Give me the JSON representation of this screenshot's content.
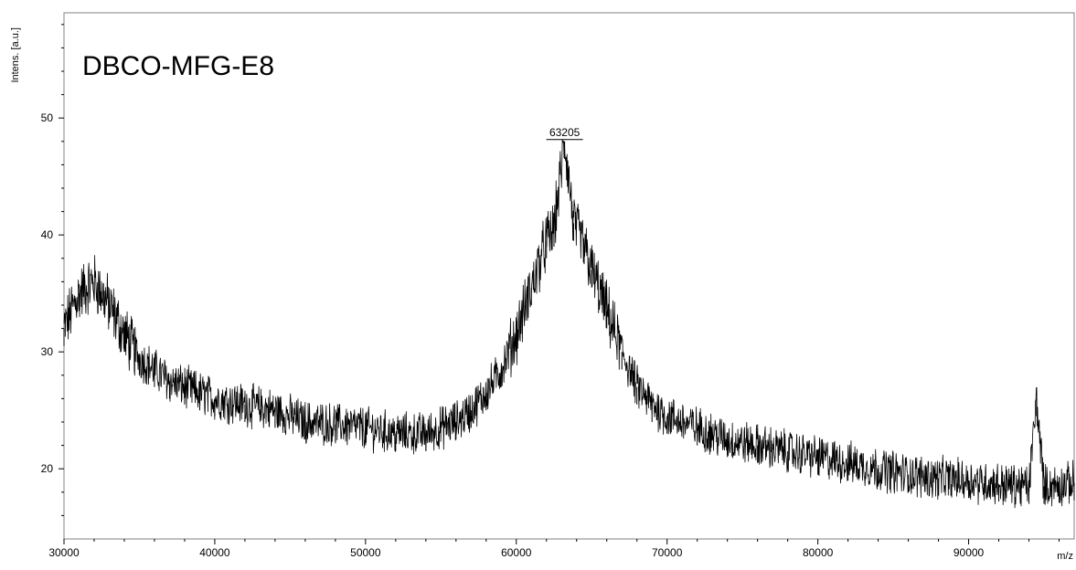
{
  "chart_data": {
    "type": "line",
    "title": "DBCO-MFG-E8",
    "xlabel": "m/z",
    "ylabel": "Intens. [a.u.]",
    "xlim": [
      30000,
      97000
    ],
    "ylim": [
      14,
      59
    ],
    "xticks": [
      30000,
      40000,
      50000,
      60000,
      70000,
      80000,
      90000
    ],
    "xtick_labels": [
      "30000",
      "40000",
      "50000",
      "60000",
      "70000",
      "80000",
      "90000"
    ],
    "yticks": [
      20,
      30,
      40,
      50
    ],
    "ytick_labels": [
      "20",
      "30",
      "40",
      "50"
    ],
    "grid": false,
    "legend": "none",
    "line_color": "#000000",
    "peak_annotations": [
      {
        "x": 63205,
        "y": 48,
        "label": "63205"
      }
    ],
    "series": [
      {
        "x": [
          30000,
          31000,
          32000,
          33000,
          34000,
          35000,
          36000,
          37000,
          38000,
          39000,
          40000,
          42000,
          44000,
          46000,
          48000,
          50000,
          52000,
          54000,
          56000,
          57000,
          58000,
          59000,
          60000,
          61000,
          62000,
          62500,
          63205,
          63800,
          64500,
          65000,
          66000,
          67000,
          68000,
          69000,
          70000,
          72000,
          74000,
          76000,
          78000,
          80000,
          82000,
          84000,
          86000,
          88000,
          90000,
          92000,
          94000,
          94500,
          95000,
          96000,
          97000
        ],
        "values": [
          32,
          35,
          36,
          34,
          31.5,
          29.5,
          28.5,
          27.5,
          27,
          26.5,
          26,
          25.5,
          25,
          24,
          23.8,
          23.5,
          23,
          23,
          24,
          25,
          26.5,
          28.5,
          31.5,
          35.5,
          39.5,
          40.5,
          48,
          41,
          39,
          37,
          33.5,
          30,
          27,
          25.5,
          24.5,
          23.5,
          22.5,
          22,
          21.5,
          21,
          20.5,
          20,
          19.5,
          19.2,
          19,
          18.7,
          18.5,
          26,
          18.5,
          18.6,
          18.8
        ]
      }
    ]
  }
}
